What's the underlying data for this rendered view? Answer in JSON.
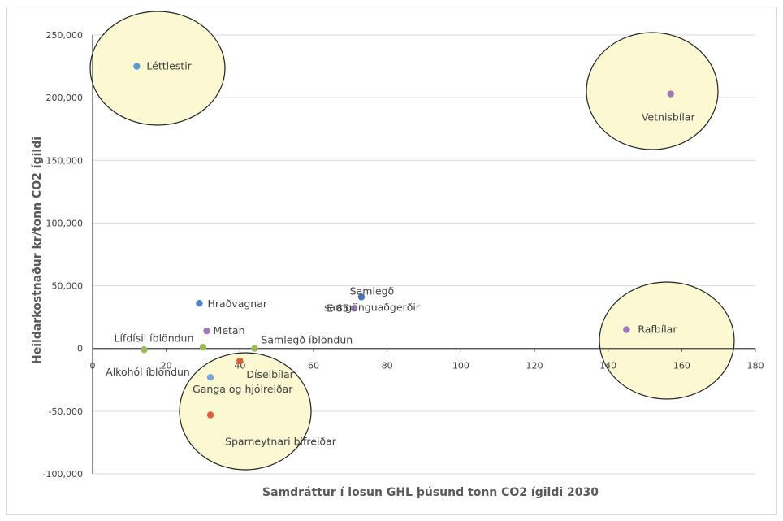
{
  "chart_data": {
    "type": "scatter",
    "title": "",
    "xlabel": "Samdráttur í losun GHL þúsund tonn CO2 ígildi  2030",
    "ylabel": "Heildarkostnaður kr/tonn CO2 ígildi",
    "xlim": [
      0,
      180
    ],
    "ylim": [
      -100000,
      250000
    ],
    "x_ticks": [
      "0",
      "20",
      "40",
      "60",
      "80",
      "100",
      "120",
      "140",
      "160",
      "180"
    ],
    "y_ticks": [
      "-100,000",
      "-50,000",
      "0",
      "50,000",
      "100,000",
      "150,000",
      "200,000",
      "250,000"
    ],
    "grid": true,
    "legend": "none",
    "points": [
      {
        "label": "Léttlestir",
        "x": 12,
        "y": 225000,
        "color": "#5b9bd5",
        "lines": [
          "Léttlestir"
        ]
      },
      {
        "label": "Vetnisbílar",
        "x": 157,
        "y": 203000,
        "color": "#9e79b5",
        "lines": [
          "Vetnisbílar"
        ]
      },
      {
        "label": "Samlegð samgönguaðgerðir",
        "x": 73,
        "y": 41000,
        "color": "#4472c4",
        "lines": [
          "Samlegð",
          "samgönguaðgerðir"
        ]
      },
      {
        "label": "E 85",
        "x": 71,
        "y": 32000,
        "color": "#9e79b5",
        "lines": [
          "E 85"
        ]
      },
      {
        "label": "Hraðvagnar",
        "x": 29,
        "y": 36000,
        "color": "#4e86c7",
        "lines": [
          "Hraðvagnar"
        ]
      },
      {
        "label": "Metan",
        "x": 31,
        "y": 14000,
        "color": "#9e79b5",
        "lines": [
          "Metan"
        ]
      },
      {
        "label": "Rafbílar",
        "x": 145,
        "y": 15000,
        "color": "#9e79b5",
        "lines": [
          "Rafbílar"
        ]
      },
      {
        "label": "Lífdísil  íblöndun",
        "x": 14,
        "y": -1000,
        "color": "#9bbb59",
        "lines": [
          "Lífdísil  íblöndun"
        ]
      },
      {
        "label": "Alkohól íblöndun",
        "x": 30,
        "y": 1000,
        "color": "#9bbb59",
        "lines": [
          "Alkohól íblöndun"
        ]
      },
      {
        "label": "Samlegð íblöndun",
        "x": 44,
        "y": 0,
        "color": "#9bbb59",
        "lines": [
          "Samlegð íblöndun"
        ]
      },
      {
        "label": "Díselbílar",
        "x": 40,
        "y": -10000,
        "color": "#d9643a",
        "lines": [
          "Díselbílar"
        ]
      },
      {
        "label": "Ganga og hjólreiðar",
        "x": 32,
        "y": -23000,
        "color": "#7aa6d1",
        "lines": [
          "Ganga og hjólreiðar"
        ]
      },
      {
        "label": "Sparneytnari bifreiðar",
        "x": 32,
        "y": -53000,
        "color": "#e0603d",
        "lines": [
          "Sparneytnari bifreiðar"
        ]
      }
    ],
    "highlight_circles": [
      {
        "name": "Léttlestir"
      },
      {
        "name": "Vetnisbílar"
      },
      {
        "name": "Rafbílar"
      },
      {
        "name": "Sparneytnari bifreiðar"
      }
    ],
    "colors": {
      "circle_fill": "#fbf8d2",
      "circle_stroke": "#222222",
      "grid": "#d9d9d9",
      "axis": "#404040"
    }
  }
}
